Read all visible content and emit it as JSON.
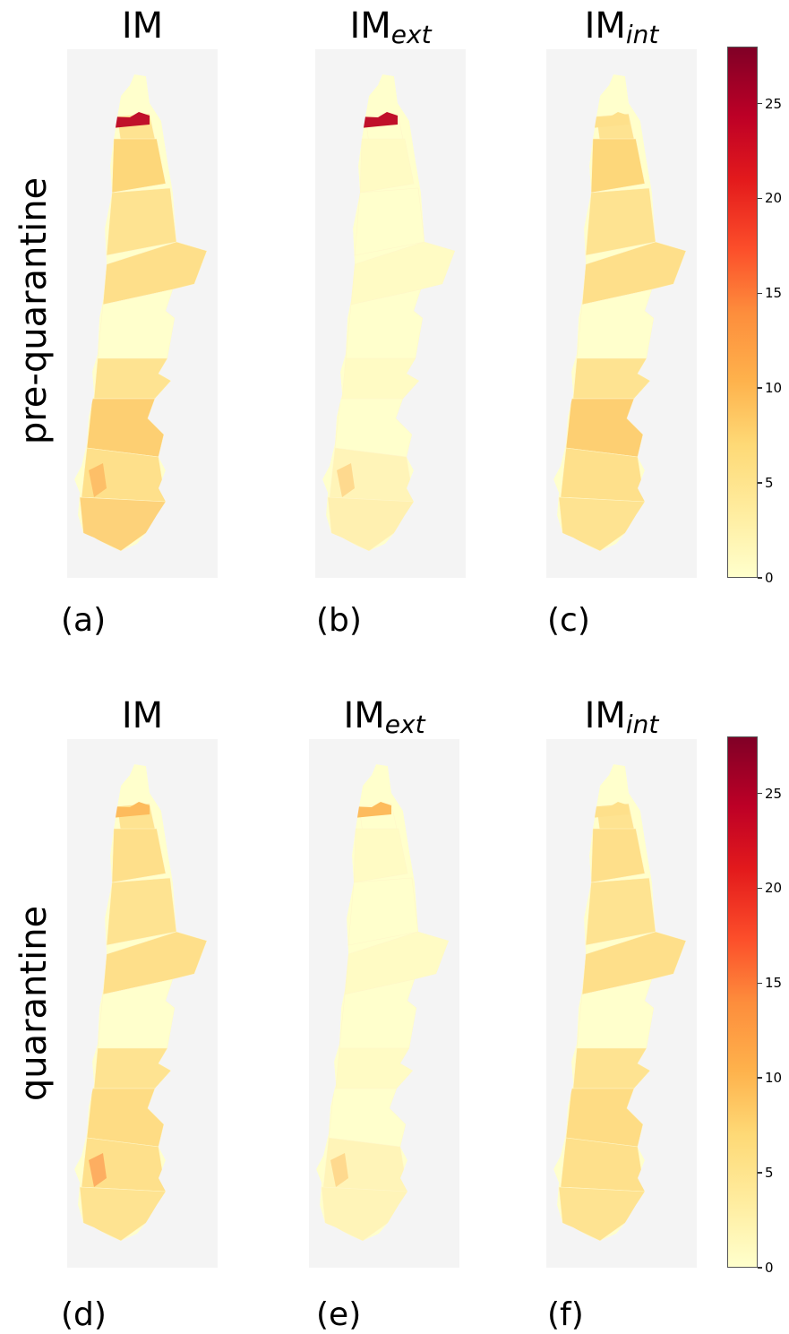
{
  "rows": [
    {
      "label": "pre-quarantine"
    },
    {
      "label": "quarantine"
    }
  ],
  "panels": [
    {
      "letter": "(a)",
      "title": "IM",
      "sub": "",
      "hotspot": "#c0102a",
      "south": "#fdbf68"
    },
    {
      "letter": "(b)",
      "title": "IM",
      "sub": "ext",
      "hotspot": "#c0102a",
      "south": "#fed98e"
    },
    {
      "letter": "(c)",
      "title": "IM",
      "sub": "int",
      "hotspot": "#fee08b",
      "south": "#fee08b"
    },
    {
      "letter": "(d)",
      "title": "IM",
      "sub": "",
      "hotspot": "#fdbb5c",
      "south": "#fdae61"
    },
    {
      "letter": "(e)",
      "title": "IM",
      "sub": "ext",
      "hotspot": "#fdbb5c",
      "south": "#fed98e"
    },
    {
      "letter": "(f)",
      "title": "IM",
      "sub": "int",
      "hotspot": "#fee08b",
      "south": "#fee08b"
    }
  ],
  "colorbar": {
    "ticks": [
      "0",
      "5",
      "10",
      "15",
      "20",
      "25"
    ],
    "min": 0,
    "max": 28,
    "colormap": "YlOrRd"
  }
}
